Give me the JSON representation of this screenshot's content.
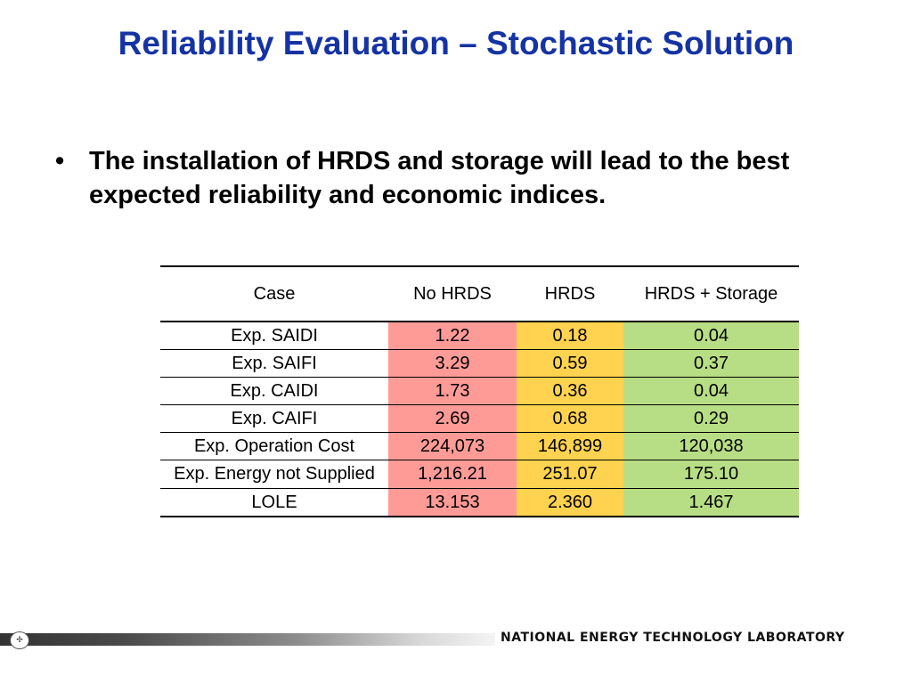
{
  "slide": {
    "title": "Reliability Evaluation – Stochastic Solution",
    "bullet_mark": "•",
    "bullet_text": "The installation of HRDS and storage will lead to the best expected reliability and economic indices."
  },
  "table": {
    "headers": [
      "Case",
      "No HRDS",
      "HRDS",
      "HRDS + Storage"
    ],
    "rows": [
      {
        "case": "Exp. SAIDI",
        "no_hrds": "1.22",
        "hrds": "0.18",
        "hrds_storage": "0.04"
      },
      {
        "case": "Exp. SAIFI",
        "no_hrds": "3.29",
        "hrds": "0.59",
        "hrds_storage": "0.37"
      },
      {
        "case": "Exp. CAIDI",
        "no_hrds": "1.73",
        "hrds": "0.36",
        "hrds_storage": "0.04"
      },
      {
        "case": "Exp. CAIFI",
        "no_hrds": "2.69",
        "hrds": "0.68",
        "hrds_storage": "0.29"
      },
      {
        "case": "Exp. Operation Cost",
        "no_hrds": "224,073",
        "hrds": "146,899",
        "hrds_storage": "120,038"
      },
      {
        "case": "Exp. Energy not Supplied",
        "no_hrds": "1,216.21",
        "hrds": "251.07",
        "hrds_storage": "175.10"
      },
      {
        "case": "LOLE",
        "no_hrds": "13.153",
        "hrds": "2.360",
        "hrds_storage": "1.467"
      }
    ],
    "colors": {
      "no_hrds": "#ff9b97",
      "hrds": "#ffd34f",
      "hrds_storage": "#b8de85"
    }
  },
  "footer": {
    "logo_icon": "netl-logo-icon",
    "logo_glyph": "✢",
    "text": "NATIONAL ENERGY TECHNOLOGY LABORATORY"
  },
  "colors": {
    "title": "#1533a3"
  }
}
